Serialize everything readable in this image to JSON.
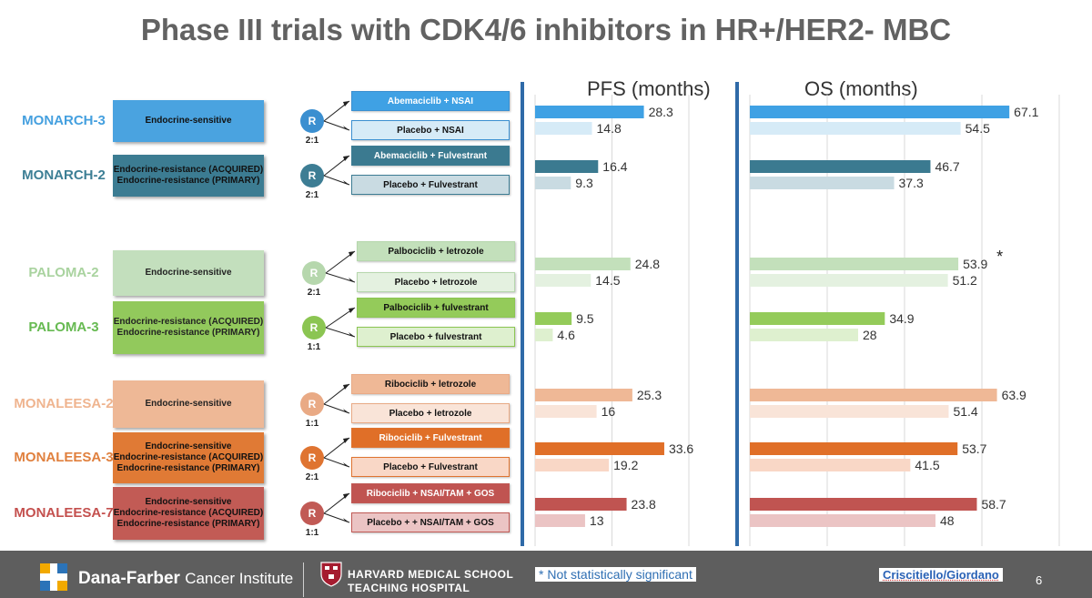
{
  "title": "Phase III trials with CDK4/6 inhibitors in HR+/HER2- MBC",
  "rand_label": "R",
  "footnote": "* Not statistically significant",
  "credit": "Criscitiello/Giordano",
  "footer": {
    "institute_name": "Dana-Farber",
    "institute_sub": "Cancer Institute",
    "school_line1": "HARVARD MEDICAL SCHOOL",
    "school_line2": "TEACHING HOSPITAL",
    "page_number": "6"
  },
  "trials": [
    {
      "name": "MONARCH-3",
      "color": "#4aa3e0",
      "population": [
        "Endocrine-sensitive"
      ],
      "ratio": "2:1",
      "arms": [
        "Abemaciclib + NSAI",
        "Placebo + NSAI"
      ],
      "c_dark": "#3fa1e4",
      "c_light": "#d6ebf7",
      "circle": "#3b8fd0",
      "name_color": "#45a0df"
    },
    {
      "name": "MONARCH-2",
      "color": "#3c7c92",
      "population": [
        "Endocrine-resistance (ACQUIRED)",
        "Endocrine-resistance (PRIMARY)"
      ],
      "ratio": "2:1",
      "arms": [
        "Abemaciclib + Fulvestrant",
        "Placebo + Fulvestrant"
      ],
      "c_dark": "#3b7a90",
      "c_light": "#c9dbe2",
      "circle": "#3d7d94",
      "name_color": "#3d7f95"
    },
    {
      "name": "PALOMA-2",
      "color": "#c3dfbd",
      "population": [
        "Endocrine-sensitive"
      ],
      "ratio": "2:1",
      "arms": [
        "Palbociclib + letrozole",
        "Placebo + letrozole"
      ],
      "c_dark": "#c3e0bb",
      "c_light": "#e4f1e0",
      "circle": "#b6d7ad",
      "name_color": "#a9d39f"
    },
    {
      "name": "PALOMA-3",
      "color": "#92c95c",
      "population": [
        "Endocrine-resistance (ACQUIRED)",
        "Endocrine-resistance (PRIMARY)"
      ],
      "ratio": "1:1",
      "arms": [
        "Palbociclib + fulvestrant",
        "Placebo + fulvestrant"
      ],
      "c_dark": "#94cb5a",
      "c_light": "#def0cf",
      "circle": "#8bc552",
      "name_color": "#67ba52"
    },
    {
      "name": "MONALEESA-2",
      "color": "#eeb896",
      "population": [
        "Endocrine-sensitive"
      ],
      "ratio": "1:1",
      "arms": [
        "Ribociclib + letrozole",
        "Placebo + letrozole"
      ],
      "c_dark": "#efb896",
      "c_light": "#f9e4d8",
      "circle": "#e9aa85",
      "name_color": "#efb48f"
    },
    {
      "name": "MONALEESA-3",
      "color": "#e07a35",
      "population": [
        "Endocrine-sensitive",
        "Endocrine-resistance (ACQUIRED)",
        "Endocrine-resistance (PRIMARY)"
      ],
      "ratio": "2:1",
      "arms": [
        "Ribociclib + Fulvestrant",
        "Placebo + Fulvestrant"
      ],
      "c_dark": "#e06f28",
      "c_light": "#f9d7c6",
      "circle": "#df7431",
      "name_color": "#e0803e"
    },
    {
      "name": "MONALEESA-7",
      "color": "#c25b55",
      "population": [
        "Endocrine-sensitive",
        "Endocrine-resistance (ACQUIRED)",
        "Endocrine-resistance (PRIMARY)"
      ],
      "ratio": "1:1",
      "arms": [
        "Ribociclib + NSAI/TAM + GOS",
        "Placebo + + NSAI/TAM + GOS"
      ],
      "c_dark": "#c05451",
      "c_light": "#ebc4c4",
      "circle": "#c15a55",
      "name_color": "#c4504e"
    }
  ],
  "chart_data": [
    {
      "type": "bar",
      "orientation": "horizontal",
      "title": "PFS (months)",
      "categories": [
        "MONARCH-3",
        "MONARCH-2",
        "PALOMA-2",
        "PALOMA-3",
        "MONALEESA-2",
        "MONALEESA-3",
        "MONALEESA-7"
      ],
      "series": [
        {
          "values": [
            28.3,
            16.4,
            24.8,
            9.5,
            25.3,
            33.6,
            23.8
          ]
        },
        {
          "values": [
            14.8,
            9.3,
            14.5,
            4.6,
            16,
            19.2,
            13
          ]
        }
      ],
      "data_labels": [
        [
          "28.3",
          "14.8"
        ],
        [
          "16.4",
          "9.3"
        ],
        [
          "24.8",
          "14.5"
        ],
        [
          "9.5",
          "4.6"
        ],
        [
          "25.3",
          "16"
        ],
        [
          "33.6",
          "19.2"
        ],
        [
          "23.8",
          "13"
        ]
      ],
      "xlim": [
        0,
        40
      ],
      "xticks": [
        "0",
        "20",
        "40"
      ],
      "grid": true
    },
    {
      "type": "bar",
      "orientation": "horizontal",
      "title": "OS (months)",
      "categories": [
        "MONARCH-3",
        "MONARCH-2",
        "PALOMA-2",
        "PALOMA-3",
        "MONALEESA-2",
        "MONALEESA-3",
        "MONALEESA-7"
      ],
      "series": [
        {
          "values": [
            67.1,
            46.7,
            53.9,
            34.9,
            63.9,
            53.7,
            58.7
          ]
        },
        {
          "values": [
            54.5,
            37.3,
            51.2,
            28,
            51.4,
            41.5,
            48
          ]
        }
      ],
      "data_labels": [
        [
          "67.1",
          "54.5"
        ],
        [
          "46.7",
          "37.3"
        ],
        [
          "53.9",
          "51.2"
        ],
        [
          "34.9",
          "28"
        ],
        [
          "63.9",
          "51.4"
        ],
        [
          "53.7",
          "41.5"
        ],
        [
          "58.7",
          "48"
        ]
      ],
      "annotations": [
        {
          "category": "PALOMA-2",
          "text": "*"
        }
      ],
      "xlim": [
        0,
        80
      ],
      "xticks": [
        "0",
        "20",
        "40",
        "60",
        "80"
      ],
      "grid": true
    }
  ]
}
